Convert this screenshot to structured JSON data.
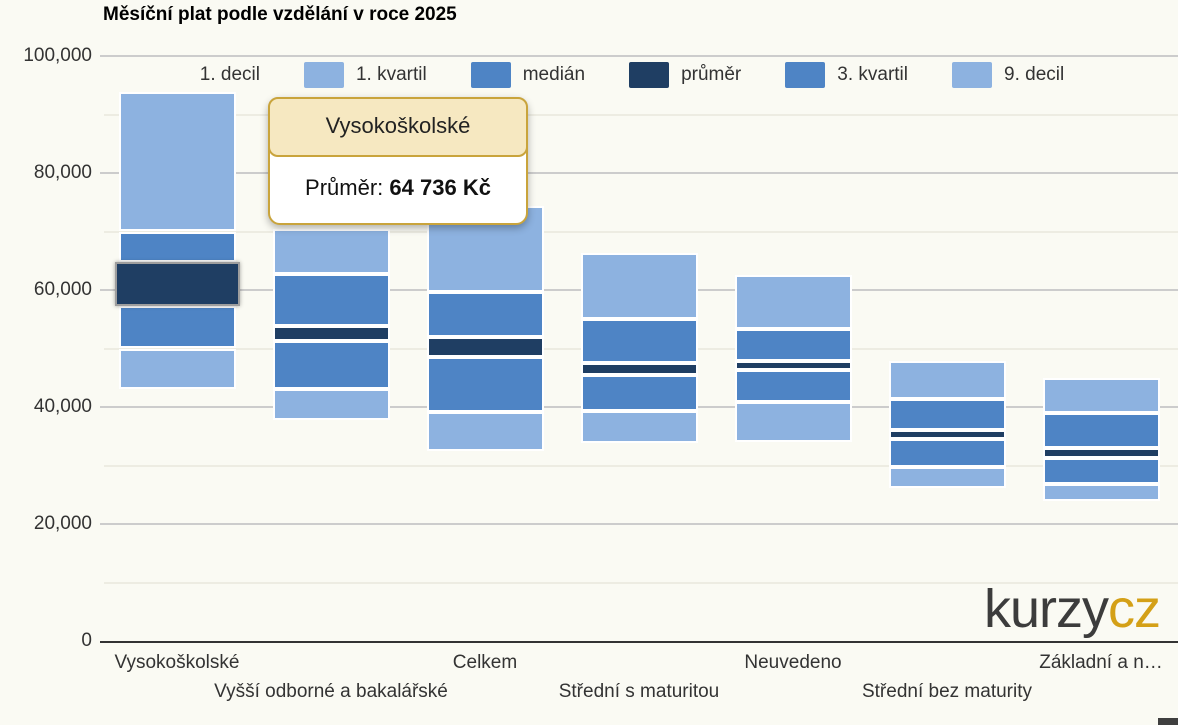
{
  "title": "Měsíční plat podle vzdělání v roce 2025",
  "legend": {
    "items": [
      {
        "label": "1. decil",
        "color": null
      },
      {
        "label": "1. kvartil",
        "color": "#8db2e0"
      },
      {
        "label": "medián",
        "color": "#4e84c5"
      },
      {
        "label": "průměr",
        "color": "#1f3e63"
      },
      {
        "label": "3. kvartil",
        "color": "#4e84c5"
      },
      {
        "label": "9. decil",
        "color": "#8db2e0"
      }
    ]
  },
  "tooltip": {
    "title": "Vysokoškolské",
    "label": "Průměr:",
    "value": "64 736 Kč"
  },
  "logo": {
    "part1": "kurzy",
    "part2": "cz"
  },
  "colors": {
    "background": "#fafaf3",
    "light_blue": "#8db2e0",
    "medium_blue": "#4e84c5",
    "dark_navy": "#1f3e63",
    "grid_major": "#cccccc",
    "grid_minor": "#edece2",
    "axis": "#333333",
    "tooltip_border": "#c9a43c",
    "tooltip_header_bg": "#f6e8c1",
    "logo_accent": "#d4a017"
  },
  "chart_data": {
    "type": "columnrange-stacked-bar",
    "title": "Měsíční plat podle vzdělání v roce 2025",
    "categories": [
      "Vysokoškolské",
      "Vyšší odborné a bakalářské",
      "Celkem",
      "Střední s maturitou",
      "Neuvedeno",
      "Střední bez maturity",
      "Základní a n…"
    ],
    "series": [
      {
        "name": "1. decil",
        "values": [
          43000,
          37800,
          32400,
          33900,
          34100,
          26200,
          24000
        ]
      },
      {
        "name": "1. kvartil",
        "values": [
          50000,
          43000,
          39200,
          39400,
          40800,
          29800,
          26900
        ]
      },
      {
        "name": "medián",
        "values": [
          57200,
          51200,
          48600,
          45400,
          46400,
          34600,
          31300
        ]
      },
      {
        "name": "průměr",
        "values": [
          64736,
          53800,
          51900,
          47600,
          47800,
          36100,
          33000
        ]
      },
      {
        "name": "3. kvartil",
        "values": [
          70000,
          62800,
          59600,
          55100,
          53400,
          41400,
          38900
        ]
      },
      {
        "name": "9. decil",
        "values": [
          93800,
          70400,
          74300,
          66400,
          62500,
          47800,
          45000
        ]
      }
    ],
    "hovered": {
      "category": "Vysokoškolské",
      "series": "průměr",
      "value_label": "64 736 Kč"
    },
    "ylim": [
      0,
      100000
    ],
    "yticks": [
      0,
      20000,
      40000,
      60000,
      80000,
      100000
    ],
    "yticks_minor": [
      10000,
      30000,
      50000,
      70000,
      90000
    ],
    "grid": true,
    "legend_position": "top"
  }
}
